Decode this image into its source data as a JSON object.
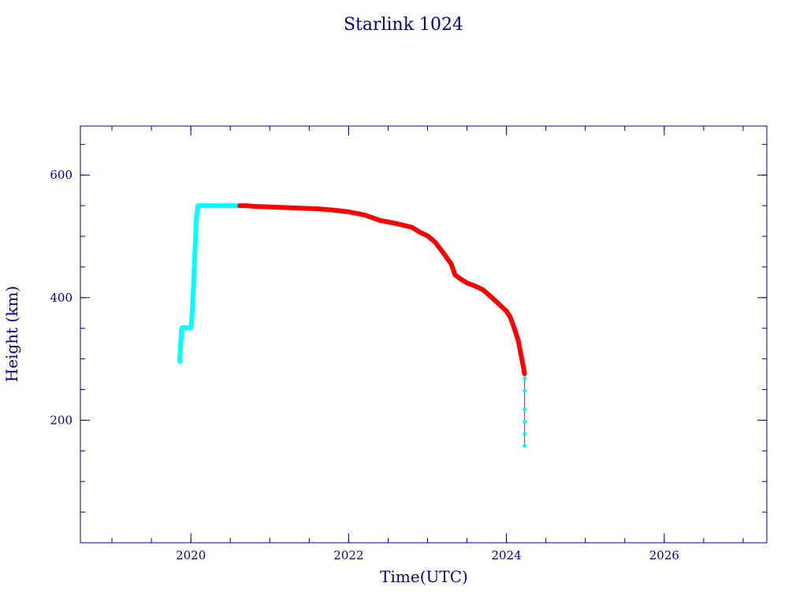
{
  "chart_data": {
    "type": "scatter",
    "title": "Starlink 1024",
    "xlabel": "Time(UTC)",
    "ylabel": "Height (km)",
    "xlim": [
      2018.6,
      2027.3
    ],
    "ylim": [
      0,
      680
    ],
    "x_ticks": [
      2020,
      2022,
      2024,
      2026
    ],
    "y_ticks": [
      200,
      400,
      600
    ],
    "x_minor_step": 0.5,
    "y_minor_step": 50,
    "grid": false,
    "legend": "none",
    "colors": {
      "axis": "#00008b",
      "text": "#00008b",
      "series_cyan": "#00ffff",
      "series_red": "#ff0000"
    },
    "series": [
      {
        "color": "#00ffff",
        "marker": "line",
        "points": [
          [
            2019.86,
            296
          ],
          [
            2019.86,
            305
          ],
          [
            2019.87,
            315
          ],
          [
            2019.87,
            325
          ],
          [
            2019.88,
            335
          ],
          [
            2019.88,
            345
          ],
          [
            2019.89,
            351
          ],
          [
            2019.95,
            351
          ],
          [
            2020.0,
            351
          ],
          [
            2020.01,
            362
          ],
          [
            2020.02,
            385
          ],
          [
            2020.03,
            410
          ],
          [
            2020.04,
            440
          ],
          [
            2020.05,
            470
          ],
          [
            2020.06,
            500
          ],
          [
            2020.07,
            530
          ],
          [
            2020.09,
            550
          ],
          [
            2020.3,
            550
          ],
          [
            2020.5,
            550
          ],
          [
            2020.62,
            550
          ]
        ]
      },
      {
        "color": "#ff0000",
        "marker": "line",
        "points": [
          [
            2020.62,
            550
          ],
          [
            2020.7,
            550
          ],
          [
            2020.8,
            549
          ],
          [
            2021.0,
            548
          ],
          [
            2021.2,
            547
          ],
          [
            2021.4,
            546
          ],
          [
            2021.6,
            545
          ],
          [
            2021.8,
            543
          ],
          [
            2022.0,
            540
          ],
          [
            2022.2,
            535
          ],
          [
            2022.4,
            526
          ],
          [
            2022.6,
            521
          ],
          [
            2022.8,
            515
          ],
          [
            2022.9,
            507
          ],
          [
            2023.0,
            501
          ],
          [
            2023.1,
            490
          ],
          [
            2023.2,
            473
          ],
          [
            2023.3,
            455
          ],
          [
            2023.35,
            437
          ],
          [
            2023.4,
            432
          ],
          [
            2023.5,
            424
          ],
          [
            2023.6,
            419
          ],
          [
            2023.7,
            413
          ],
          [
            2023.8,
            402
          ],
          [
            2023.9,
            390
          ],
          [
            2024.0,
            378
          ],
          [
            2024.05,
            368
          ],
          [
            2024.1,
            350
          ],
          [
            2024.15,
            330
          ],
          [
            2024.18,
            310
          ],
          [
            2024.21,
            290
          ],
          [
            2024.23,
            276
          ]
        ]
      },
      {
        "color": "#00ffff",
        "marker": "point",
        "points": [
          [
            2024.23,
            268
          ],
          [
            2024.23,
            248
          ],
          [
            2024.23,
            218
          ],
          [
            2024.23,
            198
          ],
          [
            2024.23,
            178
          ],
          [
            2024.23,
            158
          ]
        ]
      }
    ]
  }
}
